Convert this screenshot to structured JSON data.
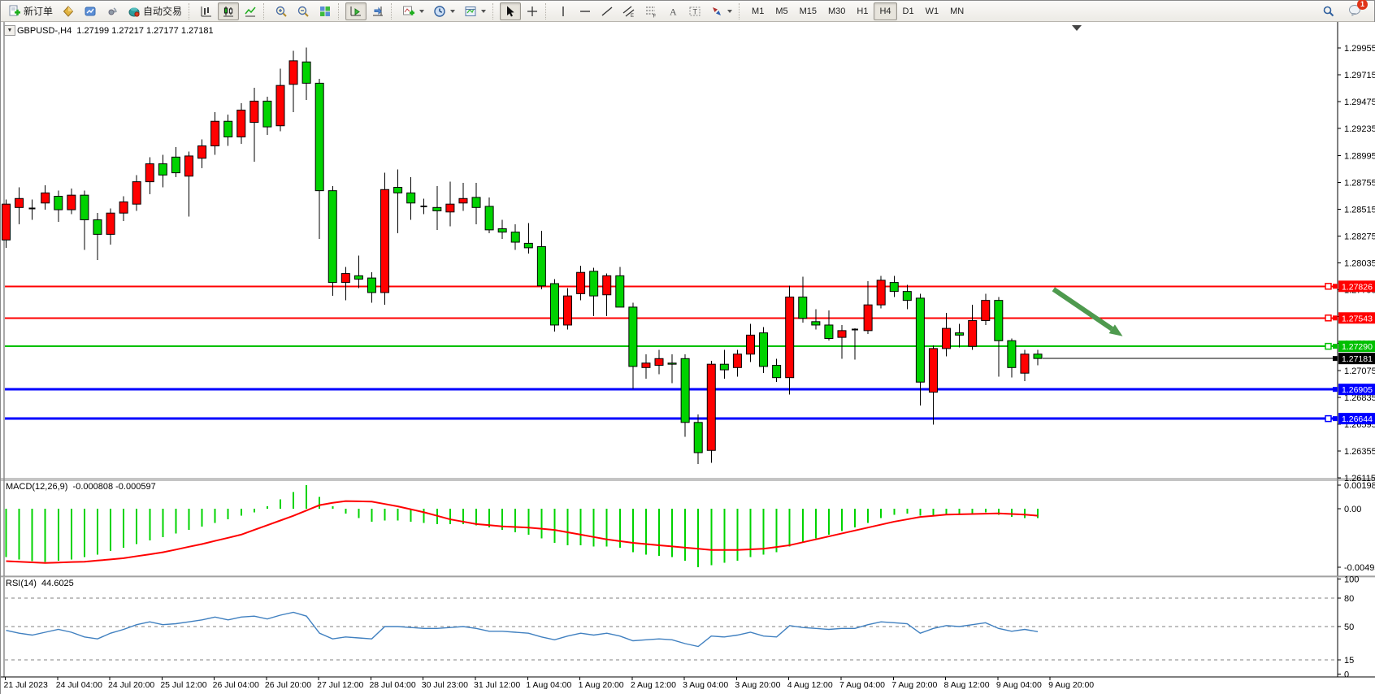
{
  "toolbar": {
    "new_order_label": "新订单",
    "autotrading_label": "自动交易",
    "icons": [
      "new-order-icon",
      "market-icon",
      "charts-icon",
      "signals-icon",
      "autotrading-icon",
      "bar-chart-icon",
      "candlestick-chart-icon",
      "line-chart-icon",
      "zoom-in-icon",
      "zoom-out-icon",
      "tile-windows-icon",
      "autoscroll-icon",
      "chart-shift-icon",
      "indicators-icon",
      "periods-icon",
      "templates-icon",
      "cursor-icon",
      "crosshair-icon",
      "vertical-line-icon",
      "horizontal-line-icon",
      "trendline-icon",
      "equidistant-channel-icon",
      "fibonacci-icon",
      "text-icon",
      "text-label-icon",
      "arrows-icon",
      "search-icon",
      "notifications-icon"
    ],
    "timeframes": [
      "M1",
      "M5",
      "M15",
      "M30",
      "H1",
      "H4",
      "D1",
      "W1",
      "MN"
    ],
    "selected_timeframe": "H4",
    "pressed_buttons": [
      "candlestick-chart",
      "autoscroll",
      "cursor",
      "H4"
    ],
    "notification_badge": "1"
  },
  "chart": {
    "symbol_text": "GBPUSD-,H4",
    "ohlc_text": "1.27199 1.27217 1.27177 1.27181",
    "macd_name": "MACD(12,26,9)",
    "macd_values": "-0.000808 -0.000597",
    "rsi_name": "RSI(14)",
    "rsi_value": "44.6025"
  },
  "colors": {
    "bull_body": "#ff0000",
    "bear_body": "#00d300",
    "candle_outline": "#000000",
    "hline_red": "#ff0000",
    "hline_green": "#00c000",
    "hline_blue": "#0000ff",
    "current_price_line": "#000000",
    "macd_histogram": "#00d300",
    "macd_signal": "#ff0000",
    "rsi_line": "#4080c0",
    "rsi_levels": "#808080",
    "arrow": "#4e9a4e",
    "tag_text": "#ffffff",
    "axis_text": "#000000",
    "chart_bg": "#ffffff"
  },
  "chart_data": {
    "type": "candlestick",
    "symbol": "GBPUSD-",
    "timeframe": "H4",
    "ohlc_display": {
      "open": 1.27199,
      "high": 1.27217,
      "low": 1.27177,
      "close": 1.27181
    },
    "y_axis": {
      "min": 1.26115,
      "max": 1.29955,
      "tick_step": 0.0024,
      "decimals": 5
    },
    "x_axis": {
      "labels": [
        "21 Jul 2023",
        "24 Jul 04:00",
        "24 Jul 20:00",
        "25 Jul 12:00",
        "26 Jul 04:00",
        "26 Jul 20:00",
        "27 Jul 12:00",
        "28 Jul 04:00",
        "30 Jul 23:00",
        "31 Jul 12:00",
        "1 Aug 04:00",
        "1 Aug 20:00",
        "2 Aug 12:00",
        "3 Aug 04:00",
        "3 Aug 20:00",
        "4 Aug 12:00",
        "7 Aug 04:00",
        "7 Aug 20:00",
        "8 Aug 12:00",
        "9 Aug 04:00",
        "9 Aug 20:00"
      ],
      "candles_per_label": 4
    },
    "candles": [
      [
        1.2824,
        1.286,
        1.2817,
        1.2856
      ],
      [
        1.2853,
        1.2871,
        1.2838,
        1.2861
      ],
      [
        1.2852,
        1.286,
        1.2842,
        1.2852
      ],
      [
        1.2857,
        1.2873,
        1.2851,
        1.2866
      ],
      [
        1.2863,
        1.2868,
        1.284,
        1.2851
      ],
      [
        1.2851,
        1.287,
        1.2847,
        1.2864
      ],
      [
        1.2864,
        1.2868,
        1.2815,
        1.2842
      ],
      [
        1.2842,
        1.2848,
        1.2806,
        1.2829
      ],
      [
        1.2829,
        1.2852,
        1.282,
        1.2848
      ],
      [
        1.2848,
        1.2863,
        1.2841,
        1.2858
      ],
      [
        1.2856,
        1.2882,
        1.285,
        1.2876
      ],
      [
        1.2876,
        1.2898,
        1.2865,
        1.2892
      ],
      [
        1.2892,
        1.29,
        1.2871,
        1.2882
      ],
      [
        1.2898,
        1.2907,
        1.288,
        1.2884
      ],
      [
        1.2881,
        1.2903,
        1.2845,
        1.2899
      ],
      [
        1.2897,
        1.2914,
        1.2888,
        1.2908
      ],
      [
        1.2908,
        1.2938,
        1.29,
        1.293
      ],
      [
        1.293,
        1.2936,
        1.2908,
        1.2916
      ],
      [
        1.2916,
        1.2946,
        1.291,
        1.294
      ],
      [
        1.2929,
        1.296,
        1.2894,
        1.2948
      ],
      [
        1.2948,
        1.2952,
        1.2918,
        1.2925
      ],
      [
        1.2926,
        1.2977,
        1.2921,
        1.2962
      ],
      [
        1.2963,
        1.2993,
        1.2938,
        1.2984
      ],
      [
        1.2983,
        1.2996,
        1.2949,
        1.2964
      ],
      [
        1.2964,
        1.2968,
        1.2825,
        1.2868
      ],
      [
        1.2868,
        1.2872,
        1.2774,
        1.2786
      ],
      [
        1.2786,
        1.28,
        1.277,
        1.2794
      ],
      [
        1.2792,
        1.281,
        1.2781,
        1.2789
      ],
      [
        1.279,
        1.2795,
        1.2768,
        1.2777
      ],
      [
        1.2777,
        1.2884,
        1.2766,
        1.2869
      ],
      [
        1.2871,
        1.2887,
        1.283,
        1.2866
      ],
      [
        1.2866,
        1.288,
        1.2842,
        1.2857
      ],
      [
        1.2854,
        1.2861,
        1.2847,
        1.2854
      ],
      [
        1.2853,
        1.2872,
        1.2833,
        1.285
      ],
      [
        1.2849,
        1.2876,
        1.2836,
        1.2856
      ],
      [
        1.2857,
        1.2875,
        1.285,
        1.2861
      ],
      [
        1.2862,
        1.2875,
        1.2838,
        1.2853
      ],
      [
        1.2854,
        1.2862,
        1.283,
        1.2833
      ],
      [
        1.2834,
        1.2842,
        1.2825,
        1.2831
      ],
      [
        1.2831,
        1.2838,
        1.2815,
        1.2822
      ],
      [
        1.2821,
        1.2839,
        1.2812,
        1.2817
      ],
      [
        1.2818,
        1.2832,
        1.278,
        1.2783
      ],
      [
        1.2785,
        1.2789,
        1.2742,
        1.2748
      ],
      [
        1.2748,
        1.2781,
        1.2744,
        1.2774
      ],
      [
        1.2776,
        1.2801,
        1.277,
        1.2795
      ],
      [
        1.2796,
        1.2799,
        1.2756,
        1.2774
      ],
      [
        1.2775,
        1.2794,
        1.2756,
        1.2792
      ],
      [
        1.2792,
        1.28,
        1.2764,
        1.2764
      ],
      [
        1.2764,
        1.2768,
        1.2691,
        1.2711
      ],
      [
        1.271,
        1.2722,
        1.27,
        1.2714
      ],
      [
        1.2712,
        1.2726,
        1.2704,
        1.2718
      ],
      [
        1.2714,
        1.2722,
        1.2696,
        1.2713
      ],
      [
        1.2718,
        1.2722,
        1.2648,
        1.2661
      ],
      [
        1.2661,
        1.2668,
        1.2624,
        1.2634
      ],
      [
        1.2636,
        1.2716,
        1.2625,
        1.2713
      ],
      [
        1.2713,
        1.2726,
        1.27,
        1.2708
      ],
      [
        1.271,
        1.2726,
        1.2702,
        1.2722
      ],
      [
        1.2722,
        1.2749,
        1.2715,
        1.2739
      ],
      [
        1.2741,
        1.2746,
        1.2705,
        1.2711
      ],
      [
        1.2712,
        1.2718,
        1.2697,
        1.2701
      ],
      [
        1.2701,
        1.2783,
        1.2686,
        1.2773
      ],
      [
        1.2773,
        1.2791,
        1.275,
        1.2754
      ],
      [
        1.2751,
        1.2762,
        1.2744,
        1.2748
      ],
      [
        1.2748,
        1.2761,
        1.2734,
        1.2736
      ],
      [
        1.2737,
        1.2748,
        1.2718,
        1.2743
      ],
      [
        1.2744,
        1.2745,
        1.2717,
        1.2744
      ],
      [
        1.2743,
        1.2787,
        1.274,
        1.2766
      ],
      [
        1.2766,
        1.2792,
        1.2763,
        1.2788
      ],
      [
        1.2786,
        1.2792,
        1.2773,
        1.2778
      ],
      [
        1.2778,
        1.2784,
        1.2762,
        1.277
      ],
      [
        1.2772,
        1.2776,
        1.2676,
        1.2697
      ],
      [
        1.2688,
        1.273,
        1.2659,
        1.2727
      ],
      [
        1.2727,
        1.2759,
        1.272,
        1.2745
      ],
      [
        1.2741,
        1.2749,
        1.2728,
        1.2739
      ],
      [
        1.2729,
        1.2766,
        1.2726,
        1.2752
      ],
      [
        1.2752,
        1.2776,
        1.2748,
        1.277
      ],
      [
        1.277,
        1.2773,
        1.2702,
        1.2734
      ],
      [
        1.2734,
        1.2736,
        1.2701,
        1.271
      ],
      [
        1.2705,
        1.2726,
        1.2698,
        1.2722
      ],
      [
        1.2722,
        1.2726,
        1.2712,
        1.27181
      ]
    ],
    "horizontal_lines": [
      {
        "price": 1.27826,
        "color": "#ff0000",
        "width": 2,
        "handle": true
      },
      {
        "price": 1.27543,
        "color": "#ff0000",
        "width": 2,
        "handle": true
      },
      {
        "price": 1.2729,
        "color": "#00c000",
        "width": 2,
        "handle": true
      },
      {
        "price": 1.26905,
        "color": "#0000ff",
        "width": 3,
        "handle": false
      },
      {
        "price": 1.26644,
        "color": "#0000ff",
        "width": 3,
        "handle": true
      }
    ],
    "current_price": 1.27181,
    "arrow_annotation": {
      "from_index": 80.2,
      "from_price": 1.278,
      "to_index": 85.5,
      "to_price": 1.2738
    },
    "macd": {
      "params": "12,26,9",
      "display_values": [
        -0.000808,
        -0.000597
      ],
      "scale_max": 0.001988,
      "scale_min": -0.004957,
      "axis_labels": [
        "0.001988",
        "0.00",
        "-0.004957"
      ],
      "histogram": [
        -0.0041,
        -0.0043,
        -0.00445,
        -0.0045,
        -0.0044,
        -0.0043,
        -0.0041,
        -0.0039,
        -0.0036,
        -0.0033,
        -0.003,
        -0.0027,
        -0.0024,
        -0.0021,
        -0.0018,
        -0.0015,
        -0.0012,
        -0.0009,
        -0.0006,
        -0.0003,
        0.0002,
        0.0008,
        0.0014,
        0.00199,
        0.001,
        0.0002,
        -0.0004,
        -0.0008,
        -0.0011,
        -0.001,
        -0.001,
        -0.0011,
        -0.0012,
        -0.0013,
        -0.0013,
        -0.0013,
        -0.0014,
        -0.0016,
        -0.0018,
        -0.002,
        -0.0022,
        -0.0025,
        -0.0029,
        -0.0031,
        -0.0031,
        -0.0032,
        -0.0032,
        -0.0033,
        -0.0037,
        -0.0039,
        -0.004,
        -0.0041,
        -0.0044,
        -0.00496,
        -0.0048,
        -0.0046,
        -0.0044,
        -0.0041,
        -0.0039,
        -0.0037,
        -0.0032,
        -0.0028,
        -0.0025,
        -0.0022,
        -0.0019,
        -0.0016,
        -0.0012,
        -0.0008,
        -0.0005,
        -0.0004,
        -0.0006,
        -0.0006,
        -0.0005,
        -0.0005,
        -0.0004,
        -0.0003,
        -0.0005,
        -0.0007,
        -0.0008,
        -0.000808
      ],
      "signal": [
        -0.00445,
        -0.0045,
        -0.00455,
        -0.0046,
        -0.00457,
        -0.00453,
        -0.0045,
        -0.0044,
        -0.0043,
        -0.0042,
        -0.00403,
        -0.00387,
        -0.0037,
        -0.00347,
        -0.00323,
        -0.003,
        -0.00273,
        -0.00247,
        -0.0022,
        -0.0018,
        -0.0014,
        -0.001,
        -0.0006,
        -0.00015,
        0.0003,
        0.0005,
        0.00065,
        0.00063,
        0.0006,
        0.0004,
        0.0002,
        -5e-05,
        -0.0003,
        -0.0006,
        -0.0009,
        -0.0011,
        -0.0013,
        -0.0014,
        -0.0015,
        -0.00155,
        -0.0016,
        -0.0017,
        -0.0018,
        -0.002,
        -0.0022,
        -0.0024,
        -0.0026,
        -0.00275,
        -0.0029,
        -0.003,
        -0.0031,
        -0.0032,
        -0.0033,
        -0.0034,
        -0.0035,
        -0.0035,
        -0.0035,
        -0.00345,
        -0.0034,
        -0.00325,
        -0.0031,
        -0.00285,
        -0.0026,
        -0.00235,
        -0.0021,
        -0.00185,
        -0.0016,
        -0.00135,
        -0.0011,
        -0.0009,
        -0.0007,
        -0.0006,
        -0.0005,
        -0.000475,
        -0.00045,
        -0.000425,
        -0.0004,
        -0.00045,
        -0.0005,
        -0.000597
      ]
    },
    "rsi": {
      "period": 14,
      "current": 44.6025,
      "levels": [
        100,
        80,
        50,
        15,
        0
      ],
      "dashed_levels": [
        80,
        50,
        15
      ],
      "values": [
        46,
        43,
        41,
        44,
        47,
        44,
        39,
        37,
        43,
        47,
        52,
        55,
        52,
        53,
        55,
        57,
        60,
        57,
        60,
        61,
        58,
        62,
        65,
        61,
        43,
        37,
        39,
        38,
        37,
        50,
        50,
        49,
        48,
        48,
        49,
        50,
        48,
        45,
        45,
        44,
        43,
        39,
        36,
        40,
        43,
        41,
        43,
        40,
        35,
        36,
        37,
        36,
        32,
        29,
        40,
        39,
        41,
        44,
        40,
        39,
        51,
        49,
        48,
        47,
        48,
        48,
        52,
        55,
        54,
        53,
        43,
        48,
        51,
        50,
        52,
        54,
        48,
        45,
        47,
        44.6
      ]
    }
  }
}
